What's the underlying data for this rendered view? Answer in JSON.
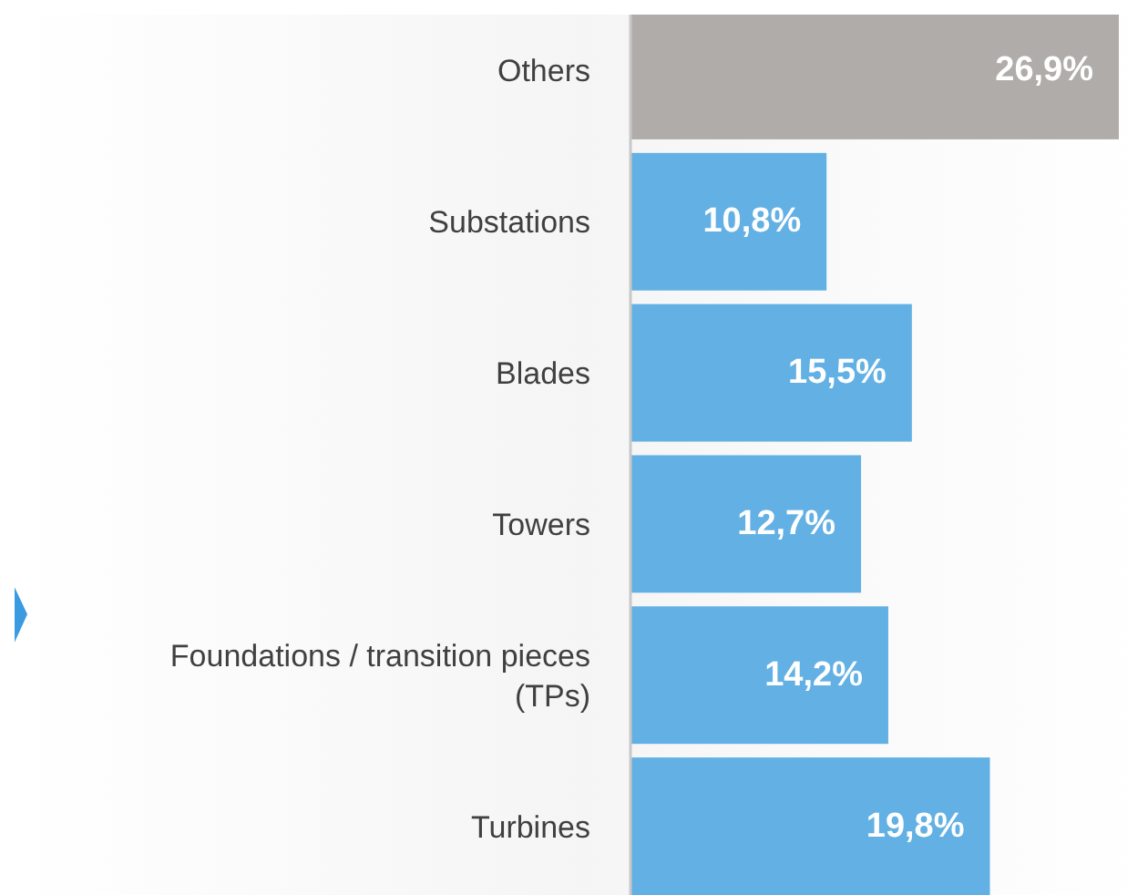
{
  "chart_data": {
    "type": "bar",
    "orientation": "horizontal",
    "relative": false,
    "categories": [
      "Others",
      "Substations",
      "Blades",
      "Towers",
      "Foundations / transition pieces (TPs)",
      "Turbines"
    ],
    "values": [
      26.9,
      10.8,
      15.5,
      12.7,
      14.2,
      19.8
    ],
    "colors": [
      "#b0aca9",
      "#63b1e4",
      "#63b1e4",
      "#63b1e4",
      "#63b1e4",
      "#63b1e4"
    ],
    "value_labels": [
      "26,9%",
      "10,8%",
      "15,5%",
      "12,7%",
      "14,2%",
      "19,8%"
    ]
  }
}
